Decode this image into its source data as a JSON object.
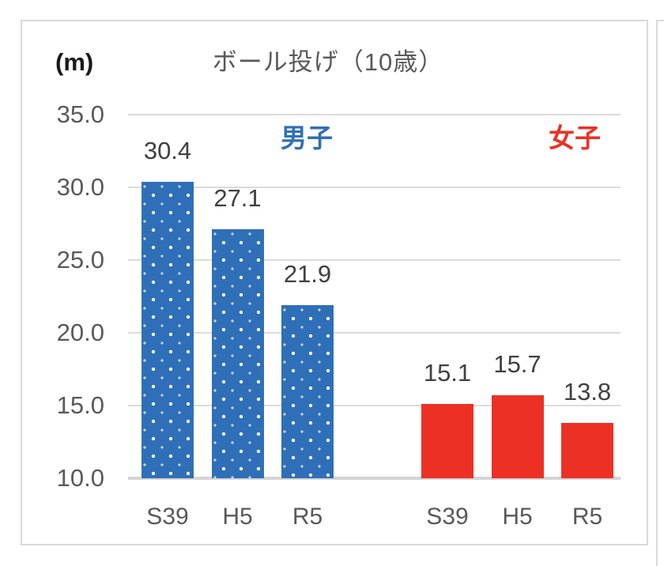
{
  "chart_data": {
    "type": "bar",
    "title": "ボール投げ（10歳）",
    "unit": "(m)",
    "categories": [
      "S39",
      "H5",
      "R5"
    ],
    "series": [
      {
        "name": "男子",
        "color": "#2F6FB8",
        "pattern": "white-dots",
        "values": [
          30.4,
          27.1,
          21.9
        ]
      },
      {
        "name": "女子",
        "color": "#EC3124",
        "pattern": "solid",
        "values": [
          15.1,
          15.7,
          13.8
        ]
      }
    ],
    "value_labels": [
      [
        "30.4",
        "27.1",
        "21.9"
      ],
      [
        "15.1",
        "15.7",
        "13.8"
      ]
    ],
    "ylim": [
      10,
      35
    ],
    "ytick_step": 5,
    "ytick_labels": [
      "35.0",
      "30.0",
      "25.0",
      "20.0",
      "15.0",
      "10.0"
    ],
    "grid": true,
    "legend_position": "inside-top",
    "colors": {
      "boys": "#2F6FB8",
      "girls": "#EC3124",
      "gridline": "#DBDBDB",
      "frame_border": "#D9D9D9",
      "title_text": "#595959",
      "axis_text": "#595959",
      "value_text": "#404040",
      "unit_text": "#1a1a1a"
    }
  }
}
